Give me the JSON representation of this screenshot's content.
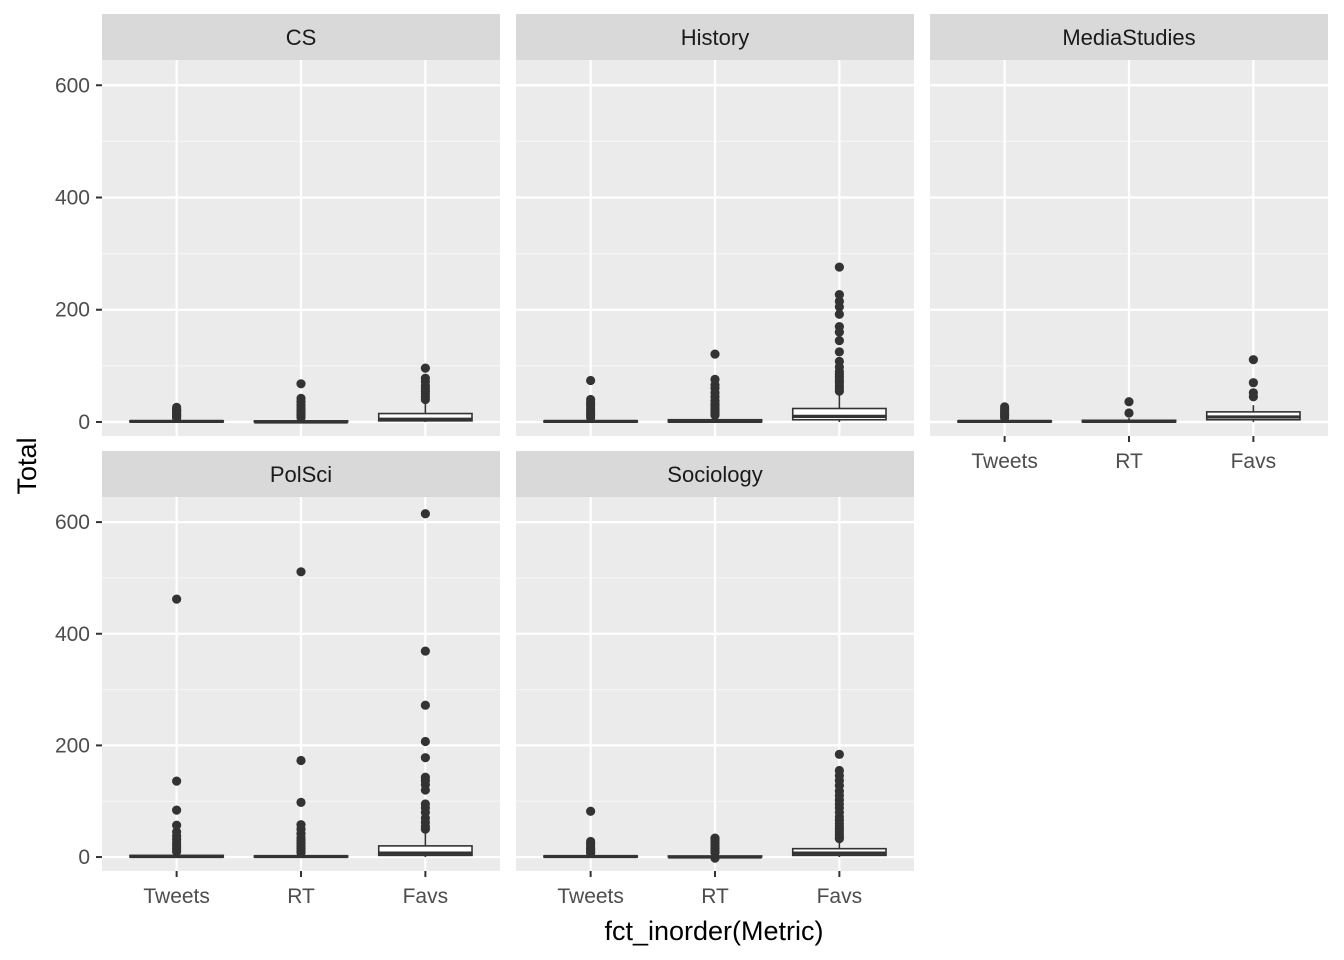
{
  "chart_data": {
    "type": "boxplot",
    "xlabel": "fct_inorder(Metric)",
    "ylabel": "Total",
    "categories": [
      "Tweets",
      "RT",
      "Favs"
    ],
    "ylim": [
      -25,
      645
    ],
    "y_ticks": [
      0,
      200,
      400,
      600
    ],
    "grid": true,
    "layout": "facet_wrap 2 rows x 3 cols",
    "panels": [
      {
        "name": "CS",
        "boxes": [
          {
            "category": "Tweets",
            "q1": 0,
            "median": 1,
            "q3": 2,
            "whisker_low": 0,
            "whisker_high": 5,
            "outliers": [
              7,
              9,
              11,
              13,
              15,
              17,
              19,
              21,
              23,
              26
            ]
          },
          {
            "category": "RT",
            "q1": 0,
            "median": 0,
            "q3": 2,
            "whisker_low": 0,
            "whisker_high": 5,
            "outliers": [
              8,
              12,
              16,
              20,
              25,
              30,
              36,
              42,
              68
            ]
          },
          {
            "category": "Favs",
            "q1": 2,
            "median": 5,
            "q3": 15,
            "whisker_low": 0,
            "whisker_high": 33,
            "outliers": [
              40,
              45,
              50,
              55,
              60,
              65,
              72,
              78,
              96
            ]
          }
        ]
      },
      {
        "name": "History",
        "boxes": [
          {
            "category": "Tweets",
            "q1": 0,
            "median": 1,
            "q3": 2,
            "whisker_low": 0,
            "whisker_high": 5,
            "outliers": [
              8,
              12,
              16,
              20,
              25,
              30,
              35,
              40,
              74
            ]
          },
          {
            "category": "RT",
            "q1": 0,
            "median": 1,
            "q3": 4,
            "whisker_low": 0,
            "whisker_high": 10,
            "outliers": [
              12,
              15,
              18,
              21,
              24,
              27,
              30,
              33,
              38,
              45,
              52,
              60,
              66,
              76,
              121
            ]
          },
          {
            "category": "Favs",
            "q1": 4,
            "median": 10,
            "q3": 24,
            "whisker_low": 0,
            "whisker_high": 50,
            "outliers": [
              55,
              60,
              65,
              70,
              75,
              80,
              85,
              90,
              98,
              108,
              125,
              145,
              160,
              170,
              192,
              205,
              215,
              227,
              276
            ]
          }
        ]
      },
      {
        "name": "MediaStudies",
        "boxes": [
          {
            "category": "Tweets",
            "q1": 0,
            "median": 1,
            "q3": 2,
            "whisker_low": 0,
            "whisker_high": 5,
            "outliers": [
              8,
              11,
              14,
              18,
              22,
              27
            ]
          },
          {
            "category": "RT",
            "q1": 0,
            "median": 1,
            "q3": 3,
            "whisker_low": 0,
            "whisker_high": 7,
            "outliers": [
              16,
              36
            ]
          },
          {
            "category": "Favs",
            "q1": 4,
            "median": 9,
            "q3": 18,
            "whisker_low": 0,
            "whisker_high": 30,
            "outliers": [
              45,
              52,
              70,
              111
            ]
          }
        ]
      },
      {
        "name": "PolSci",
        "boxes": [
          {
            "category": "Tweets",
            "q1": 0,
            "median": 1,
            "q3": 3,
            "whisker_low": 0,
            "whisker_high": 7,
            "outliers": [
              10,
              14,
              18,
              22,
              27,
              32,
              38,
              45,
              57,
              84,
              136,
              462
            ]
          },
          {
            "category": "RT",
            "q1": 0,
            "median": 1,
            "q3": 2,
            "whisker_low": 0,
            "whisker_high": 5,
            "outliers": [
              8,
              12,
              16,
              20,
              25,
              30,
              35,
              42,
              50,
              58,
              98,
              173,
              511
            ]
          },
          {
            "category": "Favs",
            "q1": 3,
            "median": 7,
            "q3": 20,
            "whisker_low": 0,
            "whisker_high": 45,
            "outliers": [
              50,
              55,
              62,
              70,
              80,
              88,
              95,
              120,
              130,
              137,
              143,
              178,
              207,
              272,
              369,
              615
            ]
          }
        ]
      },
      {
        "name": "Sociology",
        "boxes": [
          {
            "category": "Tweets",
            "q1": 0,
            "median": 1,
            "q3": 2,
            "whisker_low": 0,
            "whisker_high": 5,
            "outliers": [
              7,
              10,
              13,
              16,
              20,
              24,
              28,
              82
            ]
          },
          {
            "category": "RT",
            "q1": 0,
            "median": 0,
            "q3": 2,
            "whisker_low": 0,
            "whisker_high": 5,
            "outliers": [
              -2,
              8,
              12,
              16,
              20,
              25,
              30,
              34
            ]
          },
          {
            "category": "Favs",
            "q1": 3,
            "median": 7,
            "q3": 15,
            "whisker_low": 0,
            "whisker_high": 30,
            "outliers": [
              33,
              36,
              40,
              45,
              50,
              55,
              60,
              66,
              72,
              80,
              88,
              95,
              102,
              110,
              118,
              128,
              137,
              146,
              155,
              184
            ]
          }
        ]
      }
    ]
  },
  "colors": {
    "panel_bg": "#EBEBEB",
    "strip_bg": "#D9D9D9",
    "grid_major": "#FFFFFF",
    "grid_minor": "#F5F5F5",
    "point": "#333333",
    "box_fill": "#FFFFFF",
    "box_line": "#333333",
    "tick_text": "#4D4D4D",
    "strip_text": "#1A1A1A",
    "title_text": "#000000"
  }
}
